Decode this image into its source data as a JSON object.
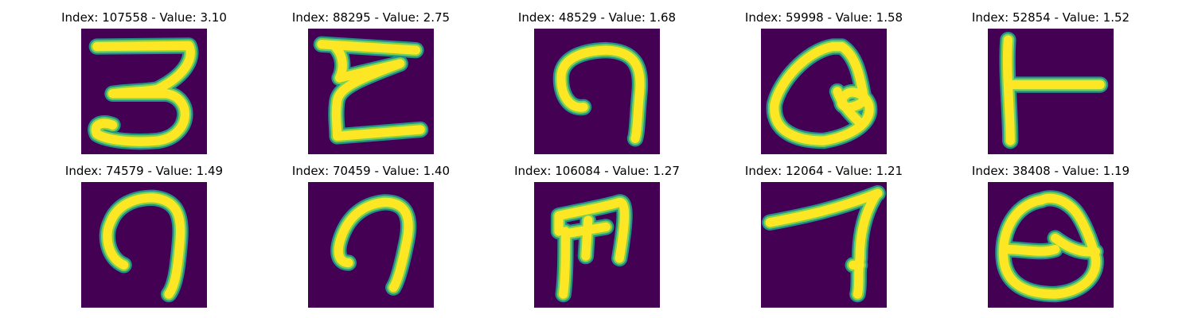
{
  "colors": {
    "background": "#440154",
    "stroke_edge": "#21918c",
    "stroke_mid": "#7ad151",
    "stroke_core": "#fde725"
  },
  "panels": [
    {
      "index": "107558",
      "value": "3.10",
      "title": "Index: 107558 - Value: 3.10"
    },
    {
      "index": "88295",
      "value": "2.75",
      "title": "Index: 88295 - Value: 2.75"
    },
    {
      "index": "48529",
      "value": "1.68",
      "title": "Index: 48529 - Value: 1.68"
    },
    {
      "index": "59998",
      "value": "1.58",
      "title": "Index: 59998 - Value: 1.58"
    },
    {
      "index": "52854",
      "value": "1.52",
      "title": "Index: 52854 - Value: 1.52"
    },
    {
      "index": "74579",
      "value": "1.49",
      "title": "Index: 74579 - Value: 1.49"
    },
    {
      "index": "70459",
      "value": "1.40",
      "title": "Index: 70459 - Value: 1.40"
    },
    {
      "index": "106084",
      "value": "1.27",
      "title": "Index: 106084 - Value: 1.27"
    },
    {
      "index": "12064",
      "value": "1.21",
      "title": "Index: 12064 - Value: 1.21"
    },
    {
      "index": "38408",
      "value": "1.19",
      "title": "Index: 38408 - Value: 1.19"
    }
  ]
}
